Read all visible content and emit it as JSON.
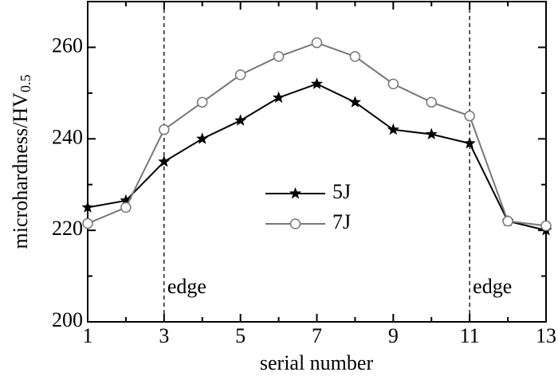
{
  "chart_data": {
    "type": "line",
    "xlabel": "serial number",
    "ylabel": "microhardness/HV",
    "ylabel_subscript": "0.5",
    "x": [
      1,
      2,
      3,
      4,
      5,
      6,
      7,
      8,
      9,
      10,
      11,
      12,
      13
    ],
    "series": [
      {
        "name": "5J",
        "color": "#000000",
        "marker": "star",
        "values": [
          225,
          226.5,
          235,
          240,
          244,
          249,
          252,
          248,
          242,
          241,
          239,
          222,
          220
        ]
      },
      {
        "name": "7J",
        "color": "#777777",
        "marker": "open-circle",
        "values": [
          221.5,
          225,
          242,
          248,
          254,
          258,
          261,
          258,
          252,
          248,
          245,
          222,
          221
        ]
      }
    ],
    "xlim": [
      1,
      13
    ],
    "xticks": [
      1,
      3,
      5,
      7,
      9,
      11,
      13
    ],
    "xminorticks": [
      2,
      4,
      6,
      8,
      10,
      12
    ],
    "ylim": [
      200,
      270
    ],
    "yticks": [
      200,
      220,
      240,
      260
    ],
    "yminorticks": [
      210,
      230,
      250
    ],
    "grid": false,
    "legend": "center",
    "annotations": [
      {
        "text": "edge",
        "x": 3
      },
      {
        "text": "edge",
        "x": 11
      }
    ]
  }
}
